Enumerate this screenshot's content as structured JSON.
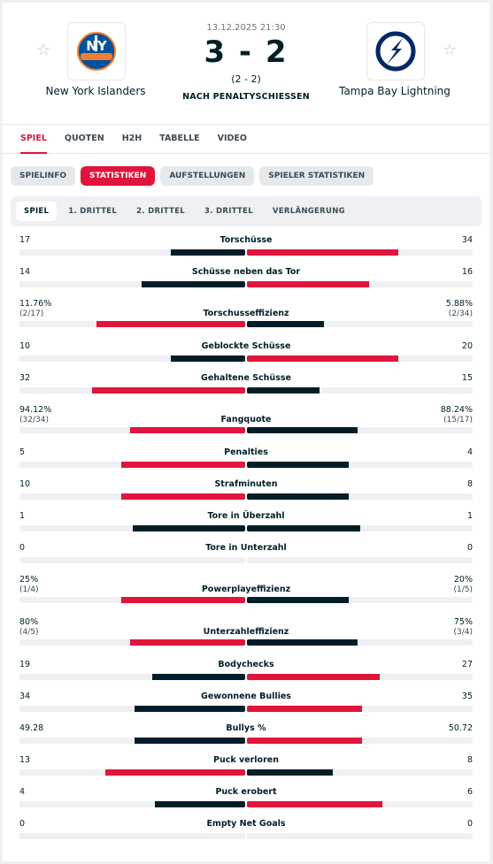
{
  "match": {
    "datetime": "13.12.2025 21:30",
    "score": "3 - 2",
    "sub_score": "(2 - 2)",
    "status": "NACH PENALTYSCHIESSEN",
    "home": {
      "name": "New York Islanders",
      "logo": "islanders-logo",
      "color": "#00539b"
    },
    "away": {
      "name": "Tampa Bay Lightning",
      "logo": "lightning-logo",
      "color": "#002868"
    }
  },
  "tabs": [
    "SPIEL",
    "QUOTEN",
    "H2H",
    "TABELLE",
    "VIDEO"
  ],
  "active_tab": "SPIEL",
  "pills": [
    "SPIELINFO",
    "STATISTIKEN",
    "AUFSTELLUNGEN",
    "SPIELER STATISTIKEN"
  ],
  "active_pill": "STATISTIKEN",
  "subtabs": [
    "SPIEL",
    "1. DRITTEL",
    "2. DRITTEL",
    "3. DRITTEL",
    "VERLÄNGERUNG"
  ],
  "active_subtab": "SPIEL",
  "colors": {
    "accent": "#e0143c",
    "dark": "#001e28",
    "track": "#eef0f3"
  },
  "stats": [
    {
      "name": "Torschüsse",
      "home": "17",
      "away": "34",
      "home_frac": 0.33,
      "away_frac": 0.67,
      "better": "away"
    },
    {
      "name": "Schüsse neben das Tor",
      "home": "14",
      "away": "16",
      "home_frac": 0.46,
      "away_frac": 0.54,
      "better": "away"
    },
    {
      "name": "Torschusseffizienz",
      "home": "11.76%",
      "home_sub": "(2/17)",
      "away": "5.88%",
      "away_sub": "(2/34)",
      "home_frac": 0.66,
      "away_frac": 0.34,
      "better": "home"
    },
    {
      "name": "Geblockte Schüsse",
      "home": "10",
      "away": "20",
      "home_frac": 0.33,
      "away_frac": 0.67,
      "better": "away"
    },
    {
      "name": "Gehaltene Schüsse",
      "home": "32",
      "away": "15",
      "home_frac": 0.68,
      "away_frac": 0.32,
      "better": "home"
    },
    {
      "name": "Fangquote",
      "home": "94.12%",
      "home_sub": "(32/34)",
      "away": "88.24%",
      "away_sub": "(15/17)",
      "home_frac": 0.51,
      "away_frac": 0.49,
      "better": "home"
    },
    {
      "name": "Penalties",
      "home": "5",
      "away": "4",
      "home_frac": 0.55,
      "away_frac": 0.45,
      "better": "home"
    },
    {
      "name": "Strafminuten",
      "home": "10",
      "away": "8",
      "home_frac": 0.55,
      "away_frac": 0.45,
      "better": "home"
    },
    {
      "name": "Tore in Überzahl",
      "home": "1",
      "away": "1",
      "home_frac": 0.5,
      "away_frac": 0.5,
      "better": "none"
    },
    {
      "name": "Tore in Unterzahl",
      "home": "0",
      "away": "0",
      "home_frac": 0,
      "away_frac": 0,
      "better": "none"
    },
    {
      "name": "Powerplayeffizienz",
      "home": "25%",
      "home_sub": "(1/4)",
      "away": "20%",
      "away_sub": "(1/5)",
      "home_frac": 0.55,
      "away_frac": 0.45,
      "better": "home"
    },
    {
      "name": "Unterzahleffizienz",
      "home": "80%",
      "home_sub": "(4/5)",
      "away": "75%",
      "away_sub": "(3/4)",
      "home_frac": 0.51,
      "away_frac": 0.49,
      "better": "home"
    },
    {
      "name": "Bodychecks",
      "home": "19",
      "away": "27",
      "home_frac": 0.41,
      "away_frac": 0.59,
      "better": "away"
    },
    {
      "name": "Gewonnene Bullies",
      "home": "34",
      "away": "35",
      "home_frac": 0.49,
      "away_frac": 0.51,
      "better": "away"
    },
    {
      "name": "Bullys %",
      "home": "49.28",
      "away": "50.72",
      "home_frac": 0.49,
      "away_frac": 0.51,
      "better": "away"
    },
    {
      "name": "Puck verloren",
      "home": "13",
      "away": "8",
      "home_frac": 0.62,
      "away_frac": 0.38,
      "better": "home"
    },
    {
      "name": "Puck erobert",
      "home": "4",
      "away": "6",
      "home_frac": 0.4,
      "away_frac": 0.6,
      "better": "away"
    },
    {
      "name": "Empty Net Goals",
      "home": "0",
      "away": "0",
      "home_frac": 0,
      "away_frac": 0,
      "better": "none"
    }
  ]
}
